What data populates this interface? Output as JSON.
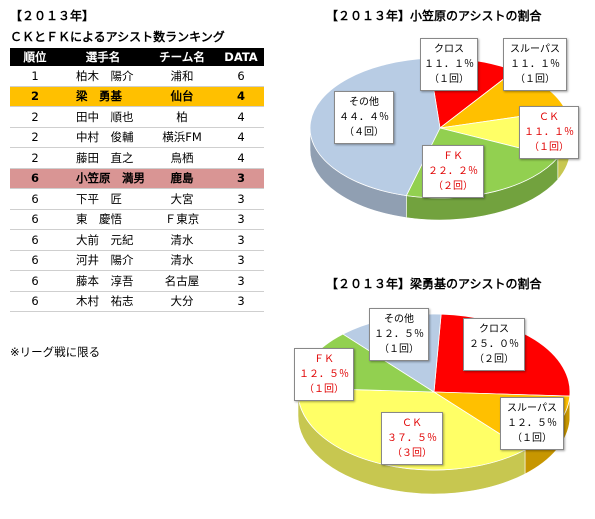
{
  "left": {
    "year_title": "【２０１３年】",
    "table_title": "ＣＫとＦＫによるアシスト数ランキング",
    "headers": [
      "順位",
      "選手名",
      "チーム名",
      "DATA"
    ],
    "rows": [
      {
        "rank": "1",
        "name": "柏木　陽介",
        "team": "浦和",
        "data": "6"
      },
      {
        "rank": "2",
        "name": "梁　勇基",
        "team": "仙台",
        "data": "4"
      },
      {
        "rank": "2",
        "name": "田中　順也",
        "team": "柏",
        "data": "4"
      },
      {
        "rank": "2",
        "name": "中村　俊輔",
        "team": "横浜FM",
        "data": "4"
      },
      {
        "rank": "2",
        "name": "藤田　直之",
        "team": "鳥栖",
        "data": "4"
      },
      {
        "rank": "6",
        "name": "小笠原　満男",
        "team": "鹿島",
        "data": "3"
      },
      {
        "rank": "6",
        "name": "下平　匠",
        "team": "大宮",
        "data": "3"
      },
      {
        "rank": "6",
        "name": "東　慶悟",
        "team": "Ｆ東京",
        "data": "3"
      },
      {
        "rank": "6",
        "name": "大前　元紀",
        "team": "清水",
        "data": "3"
      },
      {
        "rank": "6",
        "name": "河井　陽介",
        "team": "清水",
        "data": "3"
      },
      {
        "rank": "6",
        "name": "藤本　淳吾",
        "team": "名古屋",
        "data": "3"
      },
      {
        "rank": "6",
        "name": "木村　祐志",
        "team": "大分",
        "data": "3"
      }
    ],
    "note": "※リーグ戦に限る"
  },
  "chart1": {
    "title": "【２０１３年】小笠原のアシストの割合",
    "labels": [
      {
        "name": "クロス",
        "pct": "１１．１％",
        "count": "（１回）"
      },
      {
        "name": "スルーパス",
        "pct": "１１．１％",
        "count": "（１回）"
      },
      {
        "name": "ＣＫ",
        "pct": "１１．１％",
        "count": "（１回）"
      },
      {
        "name": "ＦＫ",
        "pct": "２２．２％",
        "count": "（２回）"
      },
      {
        "name": "その他",
        "pct": "４４．４％",
        "count": "（４回）"
      }
    ]
  },
  "chart2": {
    "title": "【２０１３年】梁勇基のアシストの割合",
    "labels": [
      {
        "name": "その他",
        "pct": "１２．５％",
        "count": "（１回）"
      },
      {
        "name": "クロス",
        "pct": "２５．０％",
        "count": "（２回）"
      },
      {
        "name": "ＦＫ",
        "pct": "１２．５％",
        "count": "（１回）"
      },
      {
        "name": "スルーパス",
        "pct": "１２．５％",
        "count": "（１回）"
      },
      {
        "name": "ＣＫ",
        "pct": "３７．５％",
        "count": "（３回）"
      }
    ]
  },
  "chart_data": [
    {
      "type": "pie",
      "title": "【２０１３年】小笠原のアシストの割合",
      "categories": [
        "クロス",
        "スルーパス",
        "ＣＫ",
        "ＦＫ",
        "その他"
      ],
      "values": [
        11.1,
        11.1,
        11.1,
        22.2,
        44.4
      ],
      "counts": [
        1,
        1,
        1,
        2,
        4
      ],
      "colors": [
        "#ff0000",
        "#ffc000",
        "#ffff66",
        "#92d050",
        "#b8cce4"
      ],
      "style": "3d"
    },
    {
      "type": "pie",
      "title": "【２０１３年】梁勇基のアシストの割合",
      "categories": [
        "クロス",
        "スルーパス",
        "ＣＫ",
        "ＦＫ",
        "その他"
      ],
      "values": [
        25.0,
        12.5,
        37.5,
        12.5,
        12.5
      ],
      "counts": [
        2,
        1,
        3,
        1,
        1
      ],
      "colors": [
        "#ff0000",
        "#ffc000",
        "#ffff66",
        "#92d050",
        "#b8cce4"
      ],
      "style": "3d"
    }
  ]
}
